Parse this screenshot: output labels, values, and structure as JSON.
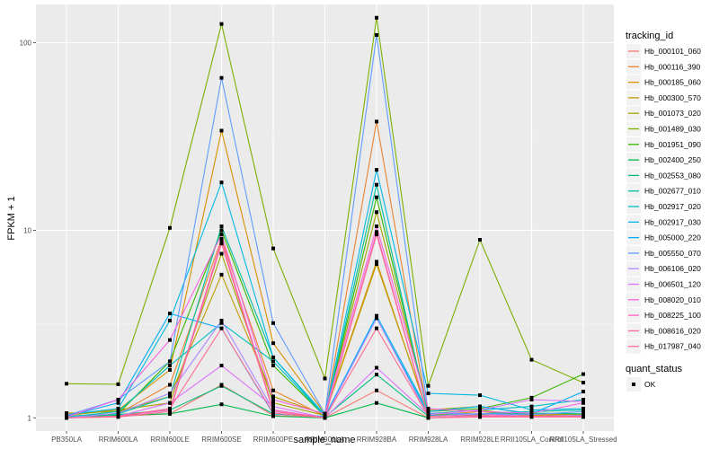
{
  "chart_data": {
    "type": "line",
    "title": "",
    "xlabel": "sample_name",
    "ylabel": "FPKM + 1",
    "y_scale": "log10",
    "ylim": [
      0.85,
      160
    ],
    "y_ticks": [
      1,
      10,
      100
    ],
    "y_tick_labels": [
      "1",
      "10",
      "100"
    ],
    "grid": true,
    "legend_position": "right",
    "categories": [
      "PB350LA",
      "RRIM600LA",
      "RRIM600LE",
      "RRIM600SE",
      "RRIM600PE",
      "RRIM901LA",
      "RRIM928BA",
      "RRIM928LA",
      "RRIM928LE",
      "RRII105LA_Control",
      "RRII105LA_Stressed"
    ],
    "legend": {
      "color_title": "tracking_id",
      "shape_title": "quant_status",
      "shape_entries": [
        "OK"
      ]
    },
    "series": [
      {
        "name": "Hb_000101_060",
        "color": "#F8766D",
        "values": [
          1.0,
          1.02,
          1.05,
          1.5,
          1.03,
          1.0,
          1.4,
          1.0,
          1.02,
          1.05,
          1.03
        ]
      },
      {
        "name": "Hb_000116_390",
        "color": "#EA8331",
        "values": [
          1.02,
          1.05,
          1.5,
          9.0,
          1.4,
          1.02,
          38.0,
          1.02,
          1.05,
          1.04,
          1.02
        ]
      },
      {
        "name": "Hb_000185_060",
        "color": "#D89000",
        "values": [
          1.05,
          1.1,
          1.8,
          34.0,
          2.5,
          1.05,
          6.8,
          1.03,
          1.08,
          1.03,
          1.02
        ]
      },
      {
        "name": "Hb_000300_570",
        "color": "#C09B00",
        "values": [
          1.06,
          1.08,
          1.3,
          5.8,
          1.3,
          1.04,
          6.6,
          1.05,
          1.1,
          1.02,
          1.02
        ]
      },
      {
        "name": "Hb_001073_020",
        "color": "#A3A500",
        "values": [
          1.03,
          1.1,
          1.2,
          7.5,
          1.2,
          1.03,
          12.5,
          1.1,
          1.15,
          1.05,
          1.04
        ]
      },
      {
        "name": "Hb_001489_030",
        "color": "#7CAE00",
        "values": [
          1.52,
          1.51,
          10.3,
          126.0,
          8.0,
          1.62,
          136.0,
          1.48,
          8.9,
          2.04,
          1.54
        ]
      },
      {
        "name": "Hb_001951_090",
        "color": "#39B600",
        "values": [
          1.0,
          1.05,
          2.0,
          10.0,
          1.9,
          1.02,
          15.0,
          1.08,
          1.12,
          1.28,
          1.71
        ]
      },
      {
        "name": "Hb_002400_250",
        "color": "#00BB4E",
        "values": [
          1.0,
          1.03,
          1.05,
          1.18,
          1.02,
          1.0,
          1.2,
          1.0,
          1.02,
          1.02,
          1.02
        ]
      },
      {
        "name": "Hb_002553_080",
        "color": "#00BF7D",
        "values": [
          1.0,
          1.04,
          1.1,
          1.48,
          1.05,
          1.01,
          1.7,
          1.02,
          1.04,
          1.06,
          1.05
        ]
      },
      {
        "name": "Hb_002677_010",
        "color": "#00C1A3",
        "values": [
          1.02,
          1.05,
          1.3,
          10.5,
          2.1,
          1.02,
          17.5,
          1.03,
          1.05,
          1.08,
          1.1
        ]
      },
      {
        "name": "Hb_002917_020",
        "color": "#00BFC4",
        "values": [
          1.01,
          1.08,
          1.9,
          3.2,
          2.0,
          1.02,
          3.4,
          1.05,
          1.1,
          1.15,
          1.25
        ]
      },
      {
        "name": "Hb_002917_030",
        "color": "#00B9E3",
        "values": [
          1.04,
          1.12,
          3.3,
          18.0,
          2.1,
          1.04,
          21.0,
          1.35,
          1.32,
          1.1,
          1.12
        ]
      },
      {
        "name": "Hb_005000_220",
        "color": "#00ADFA",
        "values": [
          1.02,
          1.2,
          3.6,
          3.0,
          1.05,
          1.02,
          3.5,
          1.08,
          1.15,
          1.05,
          1.38
        ]
      },
      {
        "name": "Hb_005550_070",
        "color": "#619CFF",
        "values": [
          1.03,
          1.25,
          2.0,
          65.0,
          3.2,
          1.05,
          110.0,
          1.06,
          1.05,
          1.04,
          1.08
        ]
      },
      {
        "name": "Hb_006106_020",
        "color": "#AE87FF",
        "values": [
          1.0,
          1.06,
          1.35,
          3.3,
          1.1,
          1.0,
          3.4,
          1.02,
          1.05,
          1.02,
          1.03
        ]
      },
      {
        "name": "Hb_006501_120",
        "color": "#DB72FB",
        "values": [
          1.0,
          1.02,
          1.2,
          1.9,
          1.15,
          1.0,
          1.85,
          1.04,
          1.1,
          1.25,
          1.22
        ]
      },
      {
        "name": "Hb_008020_010",
        "color": "#F564E3",
        "values": [
          1.01,
          1.25,
          2.6,
          9.5,
          1.25,
          1.05,
          10.5,
          1.12,
          1.08,
          1.06,
          1.2
        ]
      },
      {
        "name": "Hb_008225_100",
        "color": "#FF61C3",
        "values": [
          1.0,
          1.02,
          1.1,
          8.8,
          1.1,
          1.0,
          9.8,
          1.0,
          1.02,
          1.02,
          1.02
        ]
      },
      {
        "name": "Hb_008616_020",
        "color": "#FF6C91",
        "values": [
          1.0,
          1.01,
          1.08,
          8.5,
          1.08,
          1.0,
          9.5,
          1.0,
          1.01,
          1.01,
          1.01
        ]
      },
      {
        "name": "Hb_017987_040",
        "color": "#FF6C91",
        "values": [
          1.0,
          1.02,
          1.12,
          3.0,
          1.06,
          1.0,
          3.0,
          1.02,
          1.03,
          1.02,
          1.02
        ]
      }
    ]
  }
}
